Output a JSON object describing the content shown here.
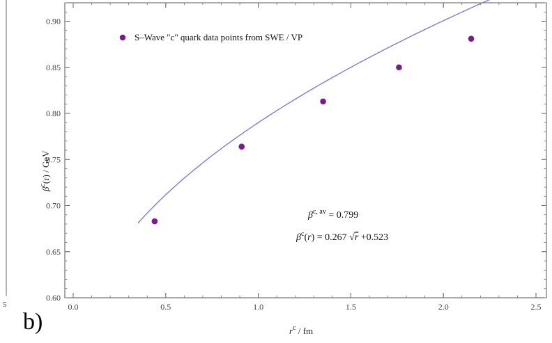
{
  "panel_label": "b)",
  "left_edge_tick": "5",
  "colors": {
    "series": "#7a1a8c",
    "fit": "#7a7fc9",
    "frame": "#555555"
  },
  "annotations": {
    "avg": {
      "prefix": "β",
      "sup": "c, av",
      "rest": " = 0.799"
    },
    "fit": {
      "prefix": "β",
      "sup": "c",
      "mid": "(",
      "var": "r",
      "eq": ") = 0.267 ",
      "sqrt": "√",
      "sqrtarg": "r",
      "tail": " +0.523"
    }
  },
  "chart_data": {
    "type": "scatter",
    "xlabel": {
      "base": "r",
      "sup": "c",
      "rest": " / fm"
    },
    "ylabel": {
      "base": "β",
      "sup": "c",
      "rest": "(r) / GeV"
    },
    "xlim": [
      0.0,
      2.5
    ],
    "ylim": [
      0.6,
      0.92
    ],
    "x_ticks": [
      "0.0",
      "0.5",
      "1.0",
      "1.5",
      "2.0",
      "2.5"
    ],
    "x_tick_values": [
      0.0,
      0.5,
      1.0,
      1.5,
      2.0,
      2.5
    ],
    "y_ticks": [
      "0.60",
      "0.65",
      "0.70",
      "0.75",
      "0.80",
      "0.85",
      "0.90"
    ],
    "y_tick_values": [
      0.6,
      0.65,
      0.7,
      0.75,
      0.8,
      0.85,
      0.9
    ],
    "legend": "S–Wave \"c\" quark data points from SWE / VP",
    "series": [
      {
        "name": "S–Wave \"c\" quark data points from SWE / VP",
        "x": [
          0.44,
          0.91,
          1.35,
          1.76,
          2.15
        ],
        "y": [
          0.683,
          0.764,
          0.813,
          0.85,
          0.881
        ]
      }
    ],
    "fit": {
      "a": 0.267,
      "b": 0.523,
      "x_range": [
        0.35,
        2.5
      ]
    }
  }
}
